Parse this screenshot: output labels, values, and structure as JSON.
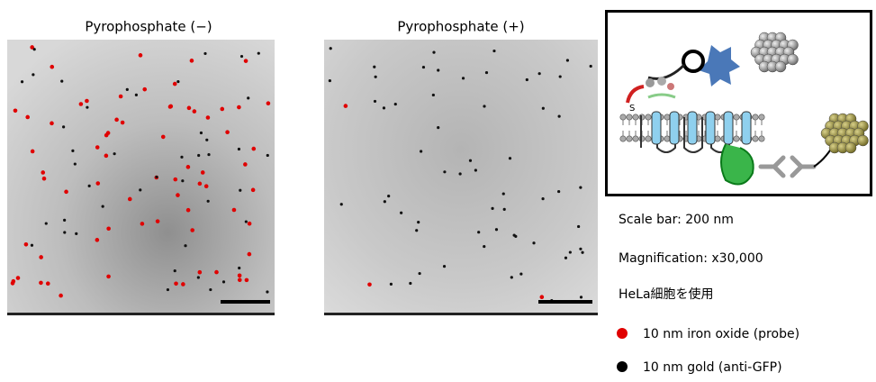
{
  "panels": [
    {
      "title": "Pyrophosphate (−)"
    },
    {
      "title": "Pyrophosphate (+)"
    }
  ],
  "info": [
    "Scale bar: 200 nm",
    "Magnification: x30,000",
    "HeLa細胞を使用"
  ],
  "legend": [
    {
      "label": "10 nm iron oxide (probe)"
    },
    {
      "label": "10 nm gold (anti-GFP)"
    }
  ]
}
